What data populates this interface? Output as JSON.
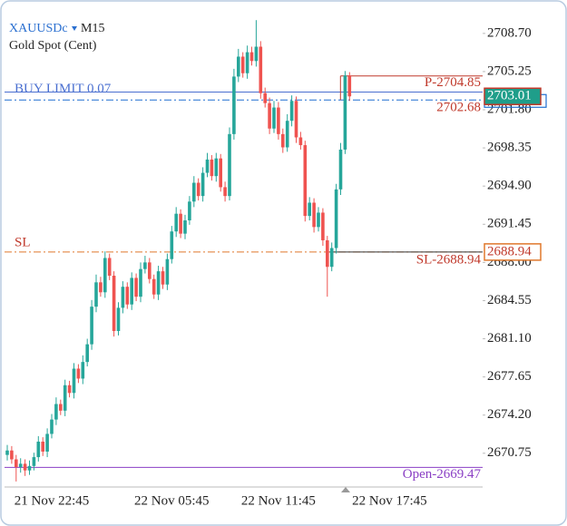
{
  "chart_data": {
    "type": "candlestick",
    "symbol": "XAUUSDc",
    "timeframe": "M15",
    "subtitle": "Gold Spot (Cent)",
    "categories": [
      null,
      null,
      null,
      null,
      null,
      null,
      null,
      null,
      null,
      null,
      "21 Nov 22:45",
      null,
      null,
      null,
      null,
      null,
      null,
      null,
      null,
      null,
      null,
      null,
      null,
      null,
      null,
      null,
      null,
      null,
      null,
      null,
      null,
      null,
      null,
      null,
      null,
      null,
      null,
      "22 Nov 05:45",
      null,
      null,
      null,
      null,
      null,
      null,
      null,
      null,
      null,
      null,
      null,
      null,
      null,
      null,
      null,
      null,
      null,
      null,
      null,
      null,
      null,
      null,
      null,
      "22 Nov 11:45",
      null,
      null,
      null,
      null,
      null,
      null,
      null,
      null,
      null,
      null,
      null,
      null,
      null,
      null,
      null,
      null,
      null,
      null,
      null,
      null,
      null,
      null,
      null,
      null,
      "22 Nov 17:45"
    ],
    "open": [
      2670.6,
      2671.0,
      2670.2,
      2669.5,
      2669.8,
      2669.2,
      2669.6,
      2670.4,
      2671.8,
      2670.9,
      2672.5,
      2673.8,
      2675.2,
      2674.6,
      2676.9,
      2676.2,
      2678.4,
      2677.5,
      2679.0,
      2680.6,
      2684.0,
      2686.2,
      2685.3,
      2688.4,
      2686.8,
      2681.8,
      2683.9,
      2685.8,
      2684.2,
      2686.6,
      2684.9,
      2687.4,
      2688.0,
      2686.5,
      2685.1,
      2687.2,
      2686.0,
      2688.3,
      2690.8,
      2692.4,
      2690.6,
      2691.8,
      2693.5,
      2695.2,
      2694.0,
      2696.1,
      2697.3,
      2695.8,
      2697.4,
      2694.8,
      2694.0,
      2699.6,
      2704.8,
      2706.6,
      2705.1,
      2707.0,
      2706.2,
      2707.5,
      2703.3,
      2702.4,
      2700.1,
      2702.0,
      2699.6,
      2698.4,
      2700.8,
      2702.6,
      2699.3,
      2698.6,
      2692.2,
      2693.4,
      2691.2,
      2692.5,
      2690.0,
      2687.6,
      2689.3,
      2694.6,
      2698.2,
      2704.9,
      null,
      null,
      null,
      null,
      null,
      null,
      null,
      null,
      null
    ],
    "high": [
      2671.5,
      2671.4,
      2670.6,
      2670.3,
      2670.2,
      2670.1,
      2670.8,
      2672.3,
      2672.2,
      2673.0,
      2674.3,
      2675.8,
      2675.6,
      2677.4,
      2677.3,
      2678.9,
      2678.8,
      2679.6,
      2681.1,
      2684.6,
      2686.9,
      2686.7,
      2689.0,
      2688.8,
      2687.2,
      2684.4,
      2686.3,
      2686.2,
      2687.1,
      2687.0,
      2688.0,
      2688.6,
      2688.4,
      2686.9,
      2687.7,
      2687.6,
      2688.8,
      2691.3,
      2693.0,
      2692.8,
      2692.3,
      2694.0,
      2695.8,
      2695.6,
      2696.6,
      2697.9,
      2697.7,
      2697.9,
      2697.8,
      2695.3,
      2700.2,
      2705.5,
      2707.3,
      2707.0,
      2707.6,
      2707.5,
      2709.9,
      2708.0,
      2703.8,
      2702.9,
      2702.6,
      2702.5,
      2700.1,
      2701.4,
      2703.1,
      2703.0,
      2699.8,
      2699.0,
      2693.9,
      2693.8,
      2693.0,
      2692.9,
      2690.4,
      2689.8,
      2695.1,
      2698.8,
      2705.3,
      2705.2,
      null,
      null,
      null,
      null,
      null,
      null,
      null,
      null,
      null
    ],
    "low": [
      2670.1,
      2669.8,
      2668.2,
      2669.0,
      2668.7,
      2668.8,
      2669.2,
      2670.0,
      2670.5,
      2670.4,
      2672.1,
      2673.3,
      2674.2,
      2674.1,
      2675.8,
      2675.7,
      2677.1,
      2677.0,
      2678.6,
      2680.1,
      2683.5,
      2684.9,
      2684.8,
      2686.4,
      2681.3,
      2681.4,
      2683.4,
      2683.8,
      2683.7,
      2684.5,
      2684.4,
      2687.0,
      2686.1,
      2684.7,
      2684.6,
      2685.6,
      2685.5,
      2687.9,
      2690.3,
      2690.2,
      2690.1,
      2691.4,
      2693.0,
      2693.6,
      2693.5,
      2695.7,
      2695.4,
      2695.3,
      2694.4,
      2693.5,
      2693.6,
      2699.1,
      2704.3,
      2704.7,
      2704.6,
      2705.8,
      2705.7,
      2702.8,
      2702.0,
      2699.6,
      2699.7,
      2699.1,
      2697.9,
      2698.0,
      2700.3,
      2698.8,
      2698.2,
      2691.7,
      2691.8,
      2690.7,
      2690.8,
      2689.5,
      2684.9,
      2687.2,
      2688.8,
      2694.1,
      2697.8,
      2702.6,
      null,
      null,
      null,
      null,
      null,
      null,
      null,
      null,
      null
    ],
    "close": [
      2671.0,
      2670.2,
      2669.5,
      2669.8,
      2669.2,
      2669.6,
      2670.4,
      2671.8,
      2670.9,
      2672.5,
      2673.8,
      2675.2,
      2674.6,
      2676.9,
      2676.2,
      2678.4,
      2677.5,
      2679.0,
      2680.6,
      2684.0,
      2686.2,
      2685.3,
      2688.4,
      2686.8,
      2681.8,
      2683.9,
      2685.8,
      2684.2,
      2686.6,
      2684.9,
      2687.4,
      2688.0,
      2686.5,
      2685.1,
      2687.2,
      2686.0,
      2688.3,
      2690.8,
      2692.4,
      2690.6,
      2691.8,
      2693.5,
      2695.2,
      2694.0,
      2696.1,
      2697.3,
      2695.8,
      2697.4,
      2694.8,
      2694.0,
      2699.6,
      2704.8,
      2706.6,
      2705.1,
      2707.0,
      2706.2,
      2707.5,
      2703.3,
      2702.4,
      2700.1,
      2702.0,
      2699.6,
      2698.4,
      2700.8,
      2702.6,
      2699.3,
      2698.6,
      2692.2,
      2693.4,
      2691.2,
      2692.5,
      2690.0,
      2687.6,
      2689.3,
      2694.6,
      2698.2,
      2704.9,
      2703.01,
      null,
      null,
      null,
      null,
      null,
      null,
      null,
      null,
      null
    ],
    "ylim": [
      2667.7,
      2710.9
    ],
    "yticks": [
      2670.75,
      {
        "value": 2674.2,
        "label": "2674.20"
      },
      2677.65,
      {
        "value": 2681.1,
        "label": "2681.10"
      },
      2684.55,
      {
        "value": 2688.0,
        "label": "2688.00"
      },
      2691.45,
      {
        "value": 2694.9,
        "label": "2694.90"
      },
      2698.35,
      {
        "value": 2701.8,
        "label": "2701.80"
      },
      2705.25,
      {
        "value": 2708.7,
        "label": "2708.70"
      }
    ],
    "take_profit": {
      "label": "P-2704.85",
      "value": 2704.85
    },
    "buy_limit": {
      "label": "BUY LIMIT 0.07",
      "value": 2703.4
    },
    "order_price": 2702.68,
    "bid_price": 2703.01,
    "stop_loss": {
      "short_label": "SL",
      "label": "SL-2688.94",
      "value": 2688.94
    },
    "open_price": {
      "label": "Open-2669.47",
      "value": 2669.47
    },
    "up_color": "#26a69a",
    "down_color": "#ef5350",
    "colors": {
      "take_profit": "#c0392b",
      "buy_limit": "#4a6fd0",
      "order_line": "#1e6fd0",
      "order_label": "#c0392b",
      "bid": "#1f9e8a",
      "stop_loss": "#e0782c",
      "stop_loss_text": "#c0392b",
      "open_price": "#8a3fc4"
    }
  }
}
